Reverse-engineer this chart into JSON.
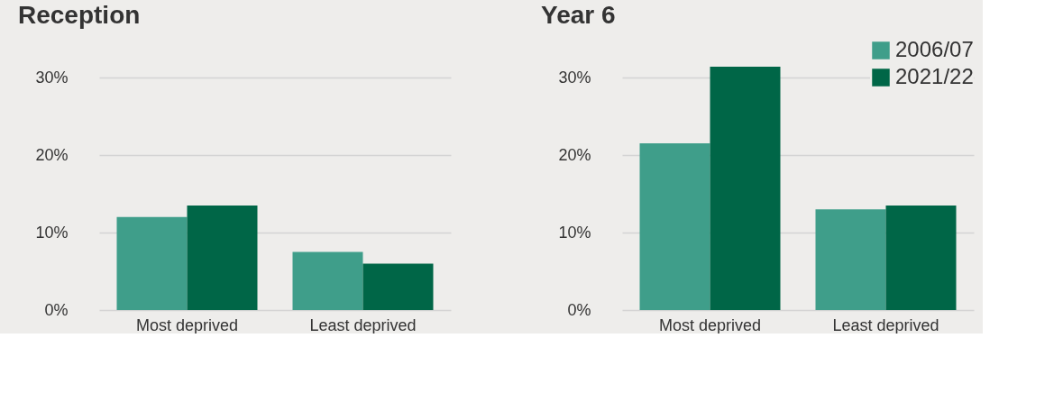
{
  "chart_data": [
    {
      "type": "bar",
      "title": "Reception",
      "categories": [
        "Most deprived",
        "Least deprived"
      ],
      "series": [
        {
          "color": "#3f9e8a",
          "values": [
            12.0,
            7.5
          ]
        },
        {
          "color": "#006647",
          "values": [
            13.5,
            6.0
          ]
        }
      ],
      "ylim": [
        0,
        30
      ],
      "yticks": [
        {
          "value": 0,
          "label": "0%"
        },
        {
          "value": 10,
          "label": "10%"
        },
        {
          "value": 20,
          "label": "20%"
        },
        {
          "value": 30,
          "label": "30%"
        }
      ],
      "grid": "y",
      "legend": false
    },
    {
      "type": "bar",
      "title": "Year 6",
      "categories": [
        "Most deprived",
        "Least deprived"
      ],
      "series": [
        {
          "name": "2006/07",
          "color": "#3f9e8a",
          "values": [
            21.5,
            13.0
          ]
        },
        {
          "name": "2021/22",
          "color": "#006647",
          "values": [
            31.4,
            13.5
          ]
        }
      ],
      "ylim": [
        0,
        35
      ],
      "yticks": [
        {
          "value": 0,
          "label": "0%"
        },
        {
          "value": 10,
          "label": "10%"
        },
        {
          "value": 20,
          "label": "20%"
        },
        {
          "value": 30,
          "label": "30%"
        }
      ],
      "grid": "y",
      "legend": "top right"
    }
  ]
}
